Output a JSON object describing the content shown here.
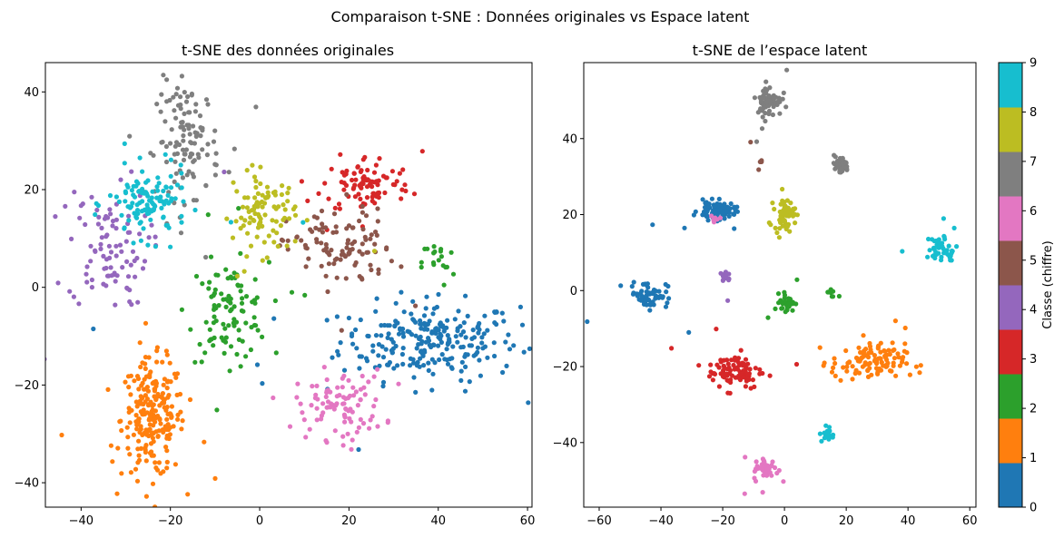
{
  "suptitle": "Comparaison t-SNE : Données originales vs Espace latent",
  "colors": [
    "#1f77b4",
    "#ff7f0e",
    "#2ca02c",
    "#d62728",
    "#9467bd",
    "#8c564b",
    "#e377c2",
    "#7f7f7f",
    "#bcbd22",
    "#17becf"
  ],
  "colorbar": {
    "label": "Classe (chiffre)",
    "ticks": [
      "0",
      "1",
      "2",
      "3",
      "4",
      "5",
      "6",
      "7",
      "8",
      "9"
    ]
  },
  "chart_data": [
    {
      "type": "scatter",
      "title": "t-SNE des données originales",
      "xlabel": "",
      "ylabel": "",
      "xlim": [
        -48,
        61
      ],
      "ylim": [
        -45,
        46
      ],
      "xticks": [
        -40,
        -20,
        0,
        20,
        40,
        60
      ],
      "yticks": [
        -40,
        -20,
        0,
        20,
        40
      ],
      "clusters": [
        {
          "class": 0,
          "center": [
            38,
            -11
          ],
          "spread": [
            10,
            4
          ],
          "count": 240
        },
        {
          "class": 1,
          "center": [
            -24,
            -27
          ],
          "spread": [
            3.5,
            6
          ],
          "count": 220
        },
        {
          "class": 2,
          "center": [
            -7,
            -5
          ],
          "spread": [
            4.5,
            5
          ],
          "count": 100
        },
        {
          "class": 2,
          "center": [
            40,
            5
          ],
          "spread": [
            1.8,
            2.5
          ],
          "count": 18
        },
        {
          "class": 3,
          "center": [
            24,
            21
          ],
          "spread": [
            5,
            3
          ],
          "count": 90
        },
        {
          "class": 4,
          "center": [
            -34,
            8
          ],
          "spread": [
            4.5,
            6
          ],
          "count": 90
        },
        {
          "class": 5,
          "center": [
            18,
            8
          ],
          "spread": [
            6,
            4
          ],
          "count": 100
        },
        {
          "class": 6,
          "center": [
            18,
            -24
          ],
          "spread": [
            5,
            3.5
          ],
          "count": 90
        },
        {
          "class": 7,
          "center": [
            -16,
            30
          ],
          "spread": [
            3.5,
            6
          ],
          "count": 110
        },
        {
          "class": 8,
          "center": [
            1,
            15
          ],
          "spread": [
            3.5,
            4
          ],
          "count": 90
        },
        {
          "class": 9,
          "center": [
            -25,
            17
          ],
          "spread": [
            4.5,
            3.5
          ],
          "count": 110
        }
      ]
    },
    {
      "type": "scatter",
      "title": "t-SNE de l’espace latent",
      "xlabel": "",
      "ylabel": "",
      "xlim": [
        -65,
        62
      ],
      "ylim": [
        -57,
        60
      ],
      "xticks": [
        -60,
        -40,
        -20,
        0,
        20,
        40,
        60
      ],
      "yticks": [
        -40,
        -20,
        0,
        20,
        40
      ],
      "clusters": [
        {
          "class": 0,
          "center": [
            -22,
            21
          ],
          "spread": [
            3,
            1.2
          ],
          "count": 90
        },
        {
          "class": 0,
          "center": [
            -44,
            -1
          ],
          "spread": [
            3,
            1.8
          ],
          "count": 60
        },
        {
          "class": 1,
          "center": [
            27,
            -19
          ],
          "spread": [
            6,
            2.5
          ],
          "count": 110
        },
        {
          "class": 2,
          "center": [
            1,
            -3
          ],
          "spread": [
            1.2,
            1.2
          ],
          "count": 40
        },
        {
          "class": 2,
          "center": [
            15,
            -1
          ],
          "spread": [
            0.6,
            0.8
          ],
          "count": 8
        },
        {
          "class": 3,
          "center": [
            -16,
            -21
          ],
          "spread": [
            4.5,
            2.5
          ],
          "count": 90
        },
        {
          "class": 4,
          "center": [
            -19,
            4
          ],
          "spread": [
            0.8,
            1
          ],
          "count": 12
        },
        {
          "class": 5,
          "center": [
            -7,
            34
          ],
          "spread": [
            0.8,
            1
          ],
          "count": 4
        },
        {
          "class": 6,
          "center": [
            -6,
            -47
          ],
          "spread": [
            2,
            1.5
          ],
          "count": 45
        },
        {
          "class": 6,
          "center": [
            -23,
            19
          ],
          "spread": [
            0.8,
            0.6
          ],
          "count": 6
        },
        {
          "class": 7,
          "center": [
            -5,
            50
          ],
          "spread": [
            2,
            2
          ],
          "count": 70
        },
        {
          "class": 7,
          "center": [
            18,
            33
          ],
          "spread": [
            1.4,
            1.2
          ],
          "count": 40
        },
        {
          "class": 8,
          "center": [
            0,
            20
          ],
          "spread": [
            1.6,
            2
          ],
          "count": 60
        },
        {
          "class": 9,
          "center": [
            51,
            11
          ],
          "spread": [
            2.5,
            2
          ],
          "count": 45
        },
        {
          "class": 9,
          "center": [
            14,
            -38
          ],
          "spread": [
            1,
            1
          ],
          "count": 18
        }
      ]
    }
  ]
}
